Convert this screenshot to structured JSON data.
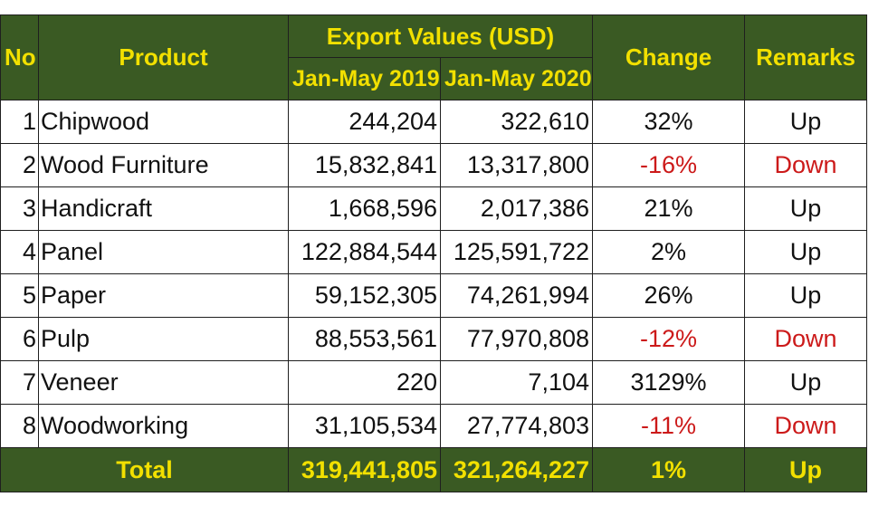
{
  "chart_data": {
    "type": "table",
    "headers": {
      "no": "No",
      "product": "Product",
      "export_values": "Export Values  (USD)",
      "year_2019": "Jan-May 2019",
      "year_2020": "Jan-May 2020",
      "change": "Change",
      "remarks": "Remarks"
    },
    "rows": [
      {
        "no": "1",
        "product": "Chipwood",
        "v2019": "244,204",
        "v2020": "322,610",
        "change": "32%",
        "remarks": "Up",
        "negative": false
      },
      {
        "no": "2",
        "product": "Wood Furniture",
        "v2019": "15,832,841",
        "v2020": "13,317,800",
        "change": "-16%",
        "remarks": "Down",
        "negative": true
      },
      {
        "no": "3",
        "product": "Handicraft",
        "v2019": "1,668,596",
        "v2020": "2,017,386",
        "change": "21%",
        "remarks": "Up",
        "negative": false
      },
      {
        "no": "4",
        "product": "Panel",
        "v2019": "122,884,544",
        "v2020": "125,591,722",
        "change": "2%",
        "remarks": "Up",
        "negative": false
      },
      {
        "no": "5",
        "product": "Paper",
        "v2019": "59,152,305",
        "v2020": "74,261,994",
        "change": "26%",
        "remarks": "Up",
        "negative": false
      },
      {
        "no": "6",
        "product": "Pulp",
        "v2019": "88,553,561",
        "v2020": "77,970,808",
        "change": "-12%",
        "remarks": "Down",
        "negative": true
      },
      {
        "no": "7",
        "product": "Veneer",
        "v2019": "220",
        "v2020": "7,104",
        "change": "3129%",
        "remarks": "Up",
        "negative": false
      },
      {
        "no": "8",
        "product": "Woodworking",
        "v2019": "31,105,534",
        "v2020": "27,774,803",
        "change": "-11%",
        "remarks": "Down",
        "negative": true
      }
    ],
    "total": {
      "label": "Total",
      "v2019": "319,441,805",
      "v2020": "321,264,227",
      "change": "1%",
      "remarks": "Up"
    },
    "colors": {
      "header_bg": "#3a5a23",
      "header_text": "#f2e000",
      "negative_text": "#cc1a1a"
    }
  }
}
